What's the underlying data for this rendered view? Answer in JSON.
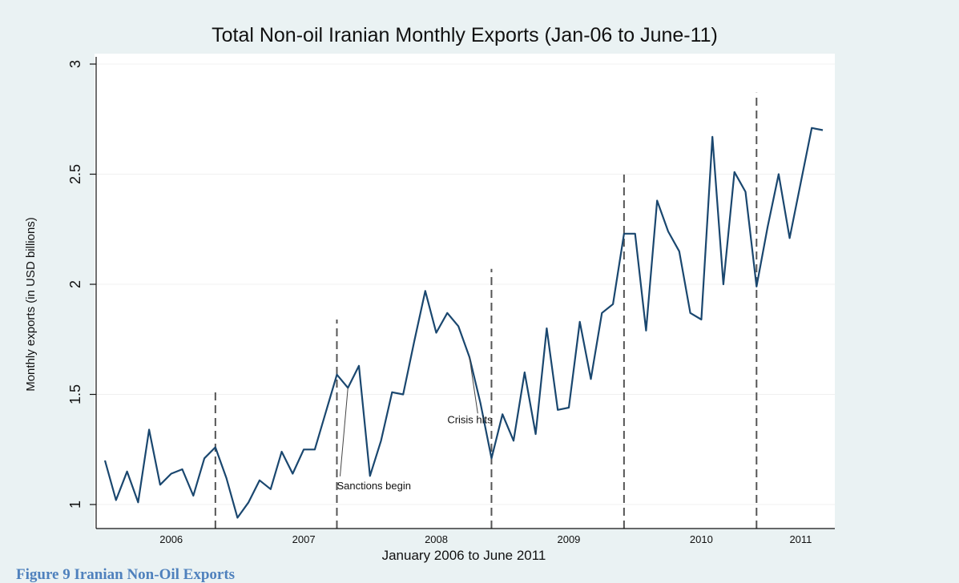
{
  "figure_caption": "Figure 9 Iranian Non-Oil Exports",
  "colors": {
    "page_background": "#ffffff",
    "plot_background": "#ffffff",
    "outer_panel": "#eaf2f3",
    "series_line": "#1a476f",
    "event_lines": "#555555",
    "caption": "#4f81bd"
  },
  "chart_data": {
    "type": "line",
    "title": "Total Non-oil Iranian Monthly Exports (Jan-06 to June-11)",
    "xlabel": "January 2006 to June 2011",
    "ylabel": "Monthly exports (in USD billions)",
    "ylim": [
      0.9,
      3.05
    ],
    "yticks": [
      1,
      1.5,
      2,
      2.5,
      3
    ],
    "ytick_labels": [
      "1",
      "1.5",
      "2",
      "2.5",
      "3"
    ],
    "xlim": [
      "2006-01",
      "2011-06"
    ],
    "year_labels": [
      {
        "label": "2006",
        "center": "2006-07"
      },
      {
        "label": "2007",
        "center": "2007-07"
      },
      {
        "label": "2008",
        "center": "2008-07"
      },
      {
        "label": "2009",
        "center": "2009-07"
      },
      {
        "label": "2010",
        "center": "2010-07"
      },
      {
        "label": "2011",
        "center": "2011-04"
      }
    ],
    "grid": true,
    "legend": "none",
    "series": [
      {
        "x": [
          "2006-01",
          "2006-02",
          "2006-03",
          "2006-04",
          "2006-05",
          "2006-06",
          "2006-07",
          "2006-08",
          "2006-09",
          "2006-10",
          "2006-11",
          "2006-12",
          "2007-01",
          "2007-02",
          "2007-03",
          "2007-04",
          "2007-05",
          "2007-06",
          "2007-07",
          "2007-08",
          "2007-09",
          "2007-10",
          "2007-11",
          "2007-12",
          "2008-01",
          "2008-02",
          "2008-03",
          "2008-04",
          "2008-05",
          "2008-06",
          "2008-07",
          "2008-08",
          "2008-09",
          "2008-10",
          "2008-11",
          "2008-12",
          "2009-01",
          "2009-02",
          "2009-03",
          "2009-04",
          "2009-05",
          "2009-06",
          "2009-07",
          "2009-08",
          "2009-09",
          "2009-10",
          "2009-11",
          "2009-12",
          "2010-01",
          "2010-02",
          "2010-03",
          "2010-04",
          "2010-05",
          "2010-06",
          "2010-07",
          "2010-08",
          "2010-09",
          "2010-10",
          "2010-11",
          "2010-12",
          "2011-01",
          "2011-02",
          "2011-03",
          "2011-04",
          "2011-05",
          "2011-06"
        ],
        "values": [
          1.2,
          1.02,
          1.15,
          1.01,
          1.34,
          1.09,
          1.14,
          1.16,
          1.04,
          1.21,
          1.26,
          1.12,
          0.94,
          1.01,
          1.11,
          1.07,
          1.24,
          1.14,
          1.25,
          1.25,
          1.42,
          1.59,
          1.53,
          1.63,
          1.13,
          1.29,
          1.51,
          1.5,
          1.74,
          1.97,
          1.78,
          1.87,
          1.81,
          1.67,
          1.46,
          1.21,
          1.41,
          1.29,
          1.6,
          1.32,
          1.8,
          1.43,
          1.44,
          1.83,
          1.57,
          1.87,
          1.91,
          2.23,
          2.23,
          1.79,
          2.38,
          2.24,
          2.15,
          1.87,
          1.84,
          2.67,
          2.0,
          2.51,
          2.42,
          1.99,
          2.26,
          2.5,
          2.21,
          2.46,
          2.71,
          2.7
        ]
      }
    ],
    "event_lines": [
      {
        "x": "2006-11",
        "top": 1.52
      },
      {
        "x": "2007-10",
        "top": 1.84
      },
      {
        "x": "2008-12",
        "top": 2.07
      },
      {
        "x": "2009-12",
        "top": 2.5
      },
      {
        "x": "2010-12",
        "top": 2.87
      }
    ],
    "annotations": [
      {
        "text": "Sanctions begin",
        "at": [
          "2007-10",
          1.07
        ],
        "points_to": [
          "2007-11",
          1.53
        ]
      },
      {
        "text": "Crisis hits",
        "at": [
          "2008-08",
          1.37
        ],
        "points_to": [
          "2008-10",
          1.67
        ]
      }
    ]
  }
}
